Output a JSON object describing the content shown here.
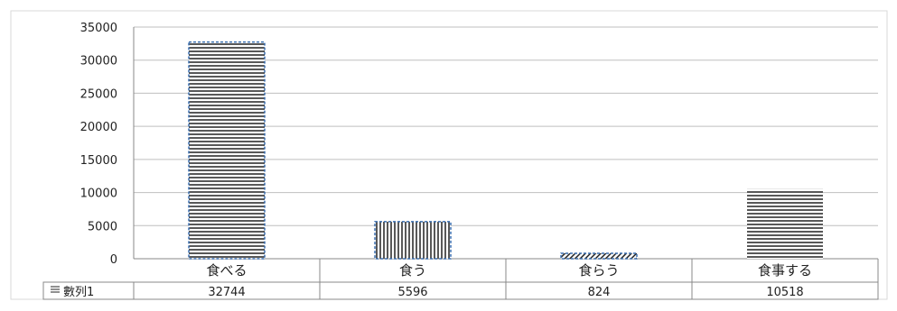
{
  "chart_data": {
    "type": "bar",
    "title": "",
    "xlabel": "",
    "ylabel": "",
    "categories": [
      "食べる",
      "食う",
      "食らう",
      "食事する"
    ],
    "series": [
      {
        "name": "數列1",
        "values": [
          32744,
          5596,
          824,
          10518
        ]
      }
    ],
    "ylim": [
      0,
      35000
    ],
    "yticks": [
      0,
      5000,
      10000,
      15000,
      20000,
      25000,
      30000,
      35000
    ],
    "grid": true,
    "legend": "data-table",
    "data_table": {
      "row_label": "數列1",
      "values": [
        "32744",
        "5596",
        "824",
        "10518"
      ]
    },
    "bar_styles": [
      "horizontal-lines-dashed-blue-border",
      "vertical-lines-dashed-blue-border",
      "diagonal-lines-dashed-blue-border",
      "horizontal-lines"
    ],
    "colors": {
      "bar_outline": "#3a6fb0",
      "pattern": "#111111",
      "grid": "#bfbfbf",
      "axis": "#888888"
    }
  }
}
